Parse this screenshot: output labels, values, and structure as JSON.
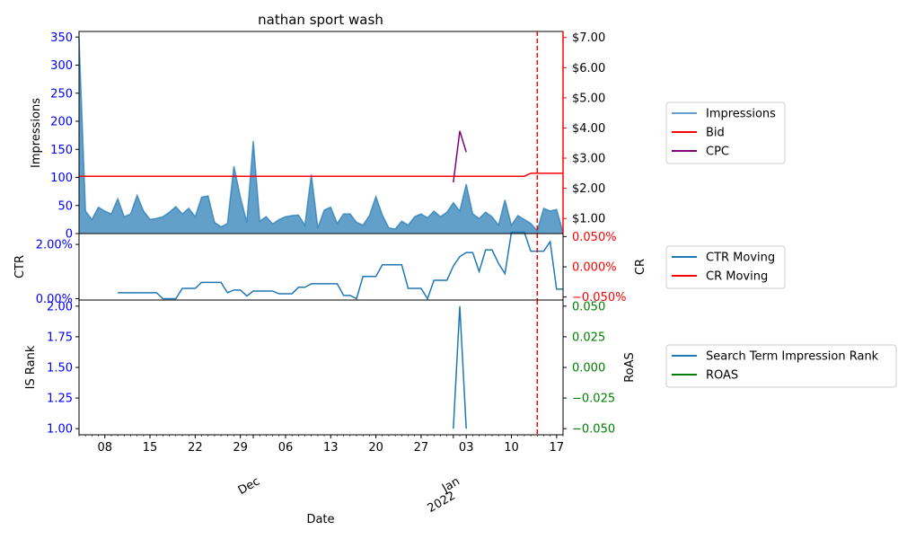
{
  "chart_data": {
    "type": "multi-panel time series",
    "title": "nathan sport wash",
    "xlabel": "Date",
    "x_tick_labels": [
      "08",
      "15",
      "22",
      "29",
      "Dec",
      "06",
      "13",
      "20",
      "27",
      "Jan\n2022",
      "03",
      "10",
      "17"
    ],
    "x_tick_dates": [
      "2021-11-08",
      "2021-11-15",
      "2021-11-22",
      "2021-11-29",
      "2021-12-01",
      "2021-12-06",
      "2021-12-13",
      "2021-12-20",
      "2021-12-27",
      "2022-01-01",
      "2022-01-03",
      "2022-01-10",
      "2022-01-17"
    ],
    "x_start": "2021-11-04",
    "x_end": "2022-01-18",
    "vline_date": "2022-01-14",
    "colors": {
      "impressions": "#1f77b4",
      "bid": "#ff0000",
      "cpc": "#800080",
      "ctr": "#1f77b4",
      "cr": "#ff0000",
      "rank": "#1f77b4",
      "roas": "#008000",
      "vline": "#ff0000",
      "left_tick": "#0000ff",
      "cr_tick": "#ff0000",
      "roas_tick": "#008000"
    },
    "panels": [
      {
        "ylabel": "Impressions",
        "ylim": [
          0,
          360
        ],
        "y_ticks": [
          0,
          50,
          100,
          150,
          200,
          250,
          300,
          350
        ],
        "right_ylim": [
          0.5,
          7.2
        ],
        "right_y_ticks": [
          "$1.00",
          "$2.00",
          "$3.00",
          "$4.00",
          "$5.00",
          "$6.00",
          "$7.00"
        ],
        "right_y_values": [
          1,
          2,
          3,
          4,
          5,
          6,
          7
        ],
        "series": [
          {
            "name": "Impressions",
            "kind": "area",
            "axis": "left",
            "x": [
              "2021-11-04",
              "2021-11-05",
              "2021-11-06",
              "2021-11-07",
              "2021-11-08",
              "2021-11-09",
              "2021-11-10",
              "2021-11-11",
              "2021-11-12",
              "2021-11-13",
              "2021-11-14",
              "2021-11-15",
              "2021-11-16",
              "2021-11-17",
              "2021-11-18",
              "2021-11-19",
              "2021-11-20",
              "2021-11-21",
              "2021-11-22",
              "2021-11-23",
              "2021-11-24",
              "2021-11-25",
              "2021-11-26",
              "2021-11-27",
              "2021-11-28",
              "2021-11-29",
              "2021-11-30",
              "2021-12-01",
              "2021-12-02",
              "2021-12-03",
              "2021-12-04",
              "2021-12-05",
              "2021-12-06",
              "2021-12-07",
              "2021-12-08",
              "2021-12-09",
              "2021-12-10",
              "2021-12-11",
              "2021-12-12",
              "2021-12-13",
              "2021-12-14",
              "2021-12-15",
              "2021-12-16",
              "2021-12-17",
              "2021-12-18",
              "2021-12-19",
              "2021-12-20",
              "2021-12-21",
              "2021-12-22",
              "2021-12-23",
              "2021-12-24",
              "2021-12-25",
              "2021-12-26",
              "2021-12-27",
              "2021-12-28",
              "2021-12-29",
              "2021-12-30",
              "2021-12-31",
              "2022-01-01",
              "2022-01-02",
              "2022-01-03",
              "2022-01-04",
              "2022-01-05",
              "2022-01-06",
              "2022-01-07",
              "2022-01-08",
              "2022-01-09",
              "2022-01-10",
              "2022-01-11",
              "2022-01-12",
              "2022-01-13",
              "2022-01-14",
              "2022-01-15",
              "2022-01-16",
              "2022-01-17",
              "2022-01-18"
            ],
            "values": [
              348,
              40,
              25,
              47,
              40,
              35,
              62,
              30,
              35,
              68,
              40,
              25,
              27,
              30,
              38,
              48,
              35,
              45,
              30,
              65,
              67,
              20,
              12,
              18,
              120,
              65,
              20,
              165,
              22,
              30,
              17,
              25,
              30,
              32,
              33,
              15,
              105,
              10,
              42,
              47,
              18,
              35,
              35,
              20,
              15,
              32,
              66,
              33,
              10,
              8,
              22,
              15,
              30,
              35,
              28,
              40,
              30,
              38,
              55,
              40,
              88,
              35,
              27,
              38,
              30,
              15,
              60,
              15,
              32,
              25,
              18,
              5,
              45,
              40,
              43,
              2
            ]
          },
          {
            "name": "Bid",
            "kind": "line",
            "axis": "right",
            "x": [
              "2021-11-04",
              "2022-01-12",
              "2022-01-13",
              "2022-01-18"
            ],
            "values": [
              2.4,
              2.4,
              2.5,
              2.5
            ]
          },
          {
            "name": "CPC",
            "kind": "line",
            "axis": "right",
            "x": [
              "2022-01-01",
              "2022-01-02",
              "2022-01-03"
            ],
            "values": [
              2.2,
              3.9,
              3.2
            ]
          }
        ],
        "legend": [
          "Impressions",
          "Bid",
          "CPC"
        ]
      },
      {
        "ylabel": "CTR",
        "ylim": [
          -0.05,
          2.4
        ],
        "y_ticks": [
          0,
          2
        ],
        "y_tick_labels": [
          "0.00%",
          "2.00%"
        ],
        "right_ylabel": "CR",
        "right_ylim": [
          -0.055,
          0.055
        ],
        "right_y_ticks": [
          "−0.050%",
          "0.000%",
          "0.050%"
        ],
        "right_y_values": [
          -0.05,
          0,
          0.05
        ],
        "series": [
          {
            "name": "CTR Moving",
            "kind": "line",
            "axis": "left",
            "x": [
              "2021-11-10",
              "2021-11-11",
              "2021-11-12",
              "2021-11-13",
              "2021-11-14",
              "2021-11-15",
              "2021-11-16",
              "2021-11-17",
              "2021-11-18",
              "2021-11-19",
              "2021-11-20",
              "2021-11-21",
              "2021-11-22",
              "2021-11-23",
              "2021-11-24",
              "2021-11-25",
              "2021-11-26",
              "2021-11-27",
              "2021-11-28",
              "2021-11-29",
              "2021-11-30",
              "2021-12-01",
              "2021-12-02",
              "2021-12-03",
              "2021-12-04",
              "2021-12-05",
              "2021-12-06",
              "2021-12-07",
              "2021-12-08",
              "2021-12-09",
              "2021-12-10",
              "2021-12-11",
              "2021-12-12",
              "2021-12-13",
              "2021-12-14",
              "2021-12-15",
              "2021-12-16",
              "2021-12-17",
              "2021-12-18",
              "2021-12-19",
              "2021-12-20",
              "2021-12-21",
              "2021-12-22",
              "2021-12-23",
              "2021-12-24",
              "2021-12-25",
              "2021-12-26",
              "2021-12-27",
              "2021-12-28",
              "2021-12-29",
              "2021-12-30",
              "2021-12-31",
              "2022-01-01",
              "2022-01-02",
              "2022-01-03",
              "2022-01-04",
              "2022-01-05",
              "2022-01-06",
              "2022-01-07",
              "2022-01-08",
              "2022-01-09",
              "2022-01-10",
              "2022-01-11",
              "2022-01-12",
              "2022-01-13",
              "2022-01-14",
              "2022-01-15",
              "2022-01-16",
              "2022-01-17",
              "2022-01-18"
            ],
            "values": [
              0.22,
              0.22,
              0.22,
              0.22,
              0.22,
              0.22,
              0.22,
              0.0,
              0.0,
              0.0,
              0.38,
              0.38,
              0.38,
              0.6,
              0.6,
              0.6,
              0.6,
              0.22,
              0.32,
              0.32,
              0.1,
              0.28,
              0.28,
              0.28,
              0.28,
              0.18,
              0.18,
              0.18,
              0.42,
              0.42,
              0.55,
              0.55,
              0.55,
              0.55,
              0.55,
              0.12,
              0.12,
              0.0,
              0.82,
              0.82,
              0.82,
              1.25,
              1.25,
              1.25,
              1.25,
              0.38,
              0.38,
              0.38,
              0.0,
              0.68,
              0.68,
              0.68,
              1.2,
              1.55,
              1.7,
              1.7,
              1.0,
              1.8,
              1.8,
              1.3,
              0.92,
              2.45,
              2.45,
              2.45,
              1.75,
              1.75,
              1.75,
              2.1,
              0.35,
              0.35
            ]
          },
          {
            "name": "CR Moving",
            "kind": "line",
            "axis": "right",
            "x": [],
            "values": []
          }
        ],
        "legend": [
          "CTR Moving",
          "CR Moving"
        ]
      },
      {
        "ylabel": "IS Rank",
        "ylim": [
          0.95,
          2.05
        ],
        "y_ticks": [
          1.0,
          1.25,
          1.5,
          1.75,
          2.0
        ],
        "y_tick_labels": [
          "1.00",
          "1.25",
          "1.50",
          "1.75",
          "2.00"
        ],
        "right_ylabel": "RoAS",
        "right_ylim": [
          -0.055,
          0.055
        ],
        "right_y_ticks": [
          "−0.050",
          "−0.025",
          "0.000",
          "0.025",
          "0.050"
        ],
        "right_y_values": [
          -0.05,
          -0.025,
          0,
          0.025,
          0.05
        ],
        "series": [
          {
            "name": "Search Term Impression Rank",
            "kind": "line",
            "axis": "left",
            "x": [
              "2022-01-01",
              "2022-01-02",
              "2022-01-03"
            ],
            "values": [
              1.0,
              2.0,
              1.0
            ]
          },
          {
            "name": "ROAS",
            "kind": "line",
            "axis": "right",
            "x": [],
            "values": []
          }
        ],
        "legend": [
          "Search Term Impression Rank",
          "ROAS"
        ]
      }
    ]
  }
}
